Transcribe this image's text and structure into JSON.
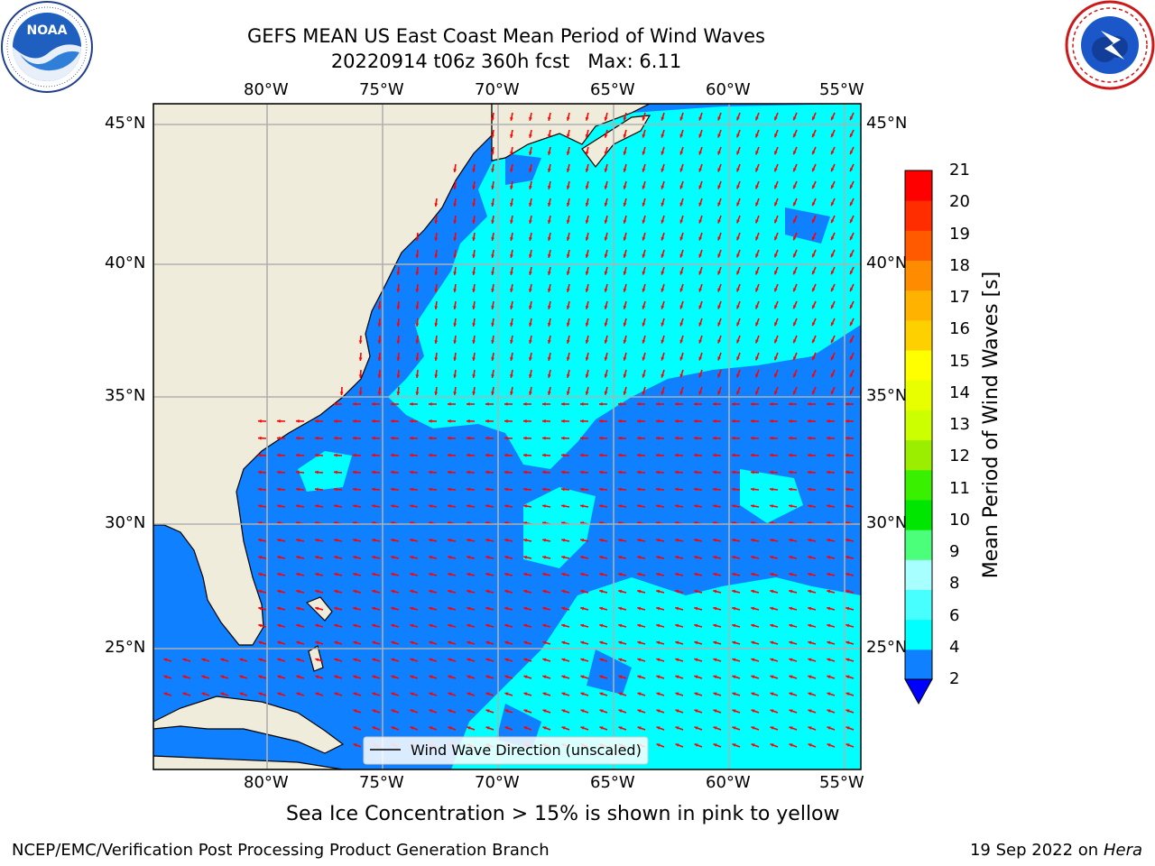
{
  "title": {
    "line1": "GEFS MEAN US East Coast Mean Period of Wind Waves",
    "line2": "20220914 t06z 360h fcst",
    "max_label": "Max: 6.11"
  },
  "map": {
    "lon_labels": [
      "80°W",
      "75°W",
      "70°W",
      "65°W",
      "60°W",
      "55°W"
    ],
    "lat_labels": [
      "45°N",
      "40°N",
      "35°N",
      "30°N",
      "25°N"
    ],
    "legend_label": "Wind Wave Direction (unscaled)",
    "colors": {
      "land": "#efecdb",
      "period_2_4": "#0f80ff",
      "period_4_6": "#00ffff",
      "arrow": "#ff0000",
      "grid": "#b0b0b0"
    }
  },
  "colorbar": {
    "label": "Mean Period of Wind Waves [s]",
    "ticks": [
      "2",
      "4",
      "6",
      "8",
      "9",
      "10",
      "11",
      "12",
      "13",
      "14",
      "15",
      "16",
      "17",
      "18",
      "19",
      "20",
      "21"
    ],
    "colors": [
      "#0f80ff",
      "#00ffff",
      "#48ffff",
      "#a8ffff",
      "#4bff7a",
      "#00e600",
      "#38f000",
      "#9bee00",
      "#ccff00",
      "#e8ff00",
      "#ffff00",
      "#ffd000",
      "#ffb300",
      "#ff8c00",
      "#ff5a00",
      "#ff2d00",
      "#ff0000"
    ],
    "extend_color": "#0000ff"
  },
  "note": "Sea Ice Concentration > 15% is shown in pink to yellow",
  "footer": {
    "left": "NCEP/EMC/Verification Post Processing Product Generation Branch",
    "date": "19 Sep 2022 on",
    "machine": "Hera"
  }
}
